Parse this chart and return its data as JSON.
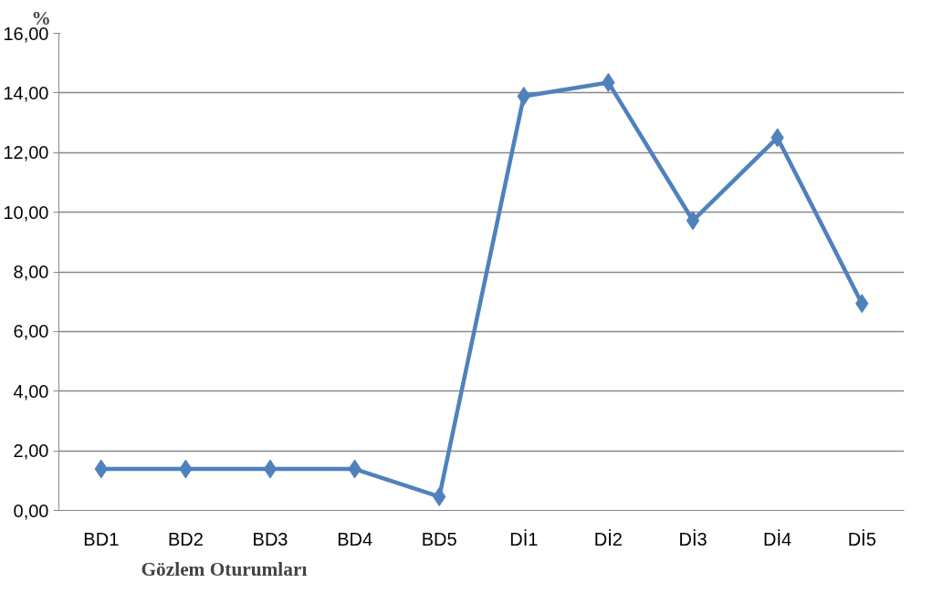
{
  "chart_data": {
    "type": "line",
    "xlabel": "Gözlem Oturumları",
    "ylabel": "%",
    "categories": [
      "BD1",
      "BD2",
      "BD3",
      "BD4",
      "BD5",
      "Dİ1",
      "Dİ2",
      "Dİ3",
      "Dİ4",
      "Dİ5"
    ],
    "series": [
      {
        "color": "#4f81bd",
        "values": [
          1.39,
          1.39,
          1.39,
          1.39,
          0.46,
          13.89,
          14.35,
          9.72,
          12.5,
          6.94
        ]
      }
    ],
    "ylim": [
      0,
      16
    ],
    "yticks": [
      {
        "value": 0,
        "label": "0,00"
      },
      {
        "value": 2,
        "label": "2,00"
      },
      {
        "value": 4,
        "label": "4,00"
      },
      {
        "value": 6,
        "label": "6,00"
      },
      {
        "value": 8,
        "label": "8,00"
      },
      {
        "value": 10,
        "label": "10,00"
      },
      {
        "value": 12,
        "label": "12,00"
      },
      {
        "value": 14,
        "label": "14,00"
      },
      {
        "value": 16,
        "label": "16,00"
      }
    ],
    "grid": "y",
    "marker": "diamond",
    "line_style": "solid"
  }
}
